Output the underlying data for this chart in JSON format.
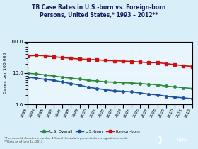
{
  "title_line1": "TB Case Rates in U.S.-born vs. Foreign-born",
  "title_line2": "Persons, United States,* 1993 – 2012**",
  "years": [
    1993,
    1994,
    1995,
    1996,
    1997,
    1998,
    1999,
    2000,
    2001,
    2002,
    2003,
    2004,
    2005,
    2006,
    2007,
    2008,
    2009,
    2010,
    2011,
    2012
  ],
  "us_overall": [
    9.8,
    9.4,
    8.7,
    8.0,
    7.4,
    6.8,
    6.4,
    5.8,
    5.6,
    5.2,
    5.1,
    4.9,
    4.8,
    4.6,
    4.4,
    4.2,
    3.8,
    3.6,
    3.4,
    3.2
  ],
  "us_born": [
    7.4,
    6.8,
    6.3,
    5.8,
    5.2,
    4.6,
    4.1,
    3.5,
    3.2,
    2.9,
    2.7,
    2.6,
    2.5,
    2.3,
    2.1,
    2.0,
    1.8,
    1.7,
    1.6,
    1.5
  ],
  "foreign_born": [
    35.0,
    36.8,
    35.6,
    33.0,
    31.3,
    29.5,
    28.0,
    27.1,
    26.5,
    25.2,
    24.8,
    24.1,
    23.5,
    22.5,
    21.5,
    21.5,
    20.0,
    18.5,
    17.2,
    16.3
  ],
  "overall_color": "#2e8b3c",
  "usborn_color": "#1f4fa0",
  "foreign_color": "#cc1111",
  "bg_color": "#d8eef8",
  "plot_bg": "#e8f5fc",
  "ylabel": "Cases per 100,000",
  "footnote1": "*The asterisk denotes a number 1.5 and the data is presented on a logarithmic scale.",
  "footnote2": "**Data as of June 14, 2013.",
  "legend": [
    "U.S. Overall",
    "U.S.-born",
    "Foreign-born"
  ]
}
